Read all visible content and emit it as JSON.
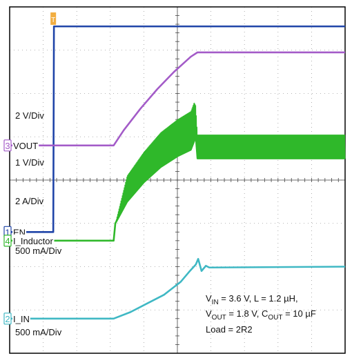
{
  "chart_data": {
    "type": "line",
    "title": "",
    "xlabel": "",
    "ylabel": "",
    "grid": true,
    "divisions": {
      "x": 10,
      "y": 8
    },
    "colors": {
      "EN": "#1f44a8",
      "VOUT": "#a35bc8",
      "I_Inductor": "#2fb82a",
      "I_IN": "#3fb8c4",
      "trigger": "#f0a020",
      "grid": "#9a9a9a",
      "frame": "#000000"
    },
    "series": [
      {
        "name": "EN",
        "marker": "1",
        "scale": "2 V/Div",
        "points": [
          [
            0,
            2.8
          ],
          [
            1.3,
            2.8
          ],
          [
            1.32,
            7.55
          ],
          [
            10,
            7.55
          ]
        ]
      },
      {
        "name": "VOUT",
        "marker": "3",
        "scale": "1 V/Div",
        "points": [
          [
            0,
            4.8
          ],
          [
            3.1,
            4.8
          ],
          [
            3.4,
            5.15
          ],
          [
            3.9,
            5.65
          ],
          [
            4.4,
            6.1
          ],
          [
            4.9,
            6.5
          ],
          [
            5.4,
            6.85
          ],
          [
            5.6,
            6.95
          ],
          [
            10,
            6.95
          ]
        ]
      },
      {
        "name": "I_Inductor",
        "marker": "4",
        "scale": "500 mA/Div",
        "points": [
          [
            0,
            2.6
          ],
          [
            3.1,
            2.6
          ],
          [
            3.15,
            3.0
          ],
          [
            3.5,
            3.5
          ],
          [
            4.0,
            3.95
          ],
          [
            4.5,
            4.3
          ],
          [
            5.0,
            4.55
          ],
          [
            5.4,
            4.7
          ],
          [
            5.55,
            5.0
          ],
          [
            5.6,
            4.5
          ],
          [
            10,
            4.5
          ]
        ],
        "ripple": [
          [
            3.15,
            0.0
          ],
          [
            3.5,
            0.6
          ],
          [
            4.5,
            0.8
          ],
          [
            5.5,
            0.9
          ],
          [
            5.6,
            0.55
          ],
          [
            10,
            0.55
          ]
        ]
      },
      {
        "name": "I_IN",
        "marker": "2",
        "scale": "500 mA/Div",
        "points": [
          [
            0,
            0.8
          ],
          [
            3.1,
            0.8
          ],
          [
            3.6,
            0.95
          ],
          [
            4.1,
            1.15
          ],
          [
            4.6,
            1.35
          ],
          [
            5.1,
            1.65
          ],
          [
            5.35,
            1.88
          ],
          [
            5.55,
            2.05
          ],
          [
            5.62,
            2.18
          ],
          [
            5.72,
            1.9
          ],
          [
            5.85,
            2.02
          ],
          [
            5.95,
            1.98
          ],
          [
            10,
            2.0
          ]
        ]
      }
    ],
    "extra_scale": "2 A/Div",
    "trigger_marker": "T"
  },
  "annotation": {
    "line1_a": "V",
    "line1_a_sub": "IN",
    "line1_b": " = 3.6 V,     L = 1.2 µH,",
    "line2_a": "V",
    "line2_a_sub": "OUT",
    "line2_b": " = 1.8 V, C",
    "line2_b_sub": "OUT",
    "line2_c": " = 10 µF",
    "line3": "Load = 2R2"
  }
}
